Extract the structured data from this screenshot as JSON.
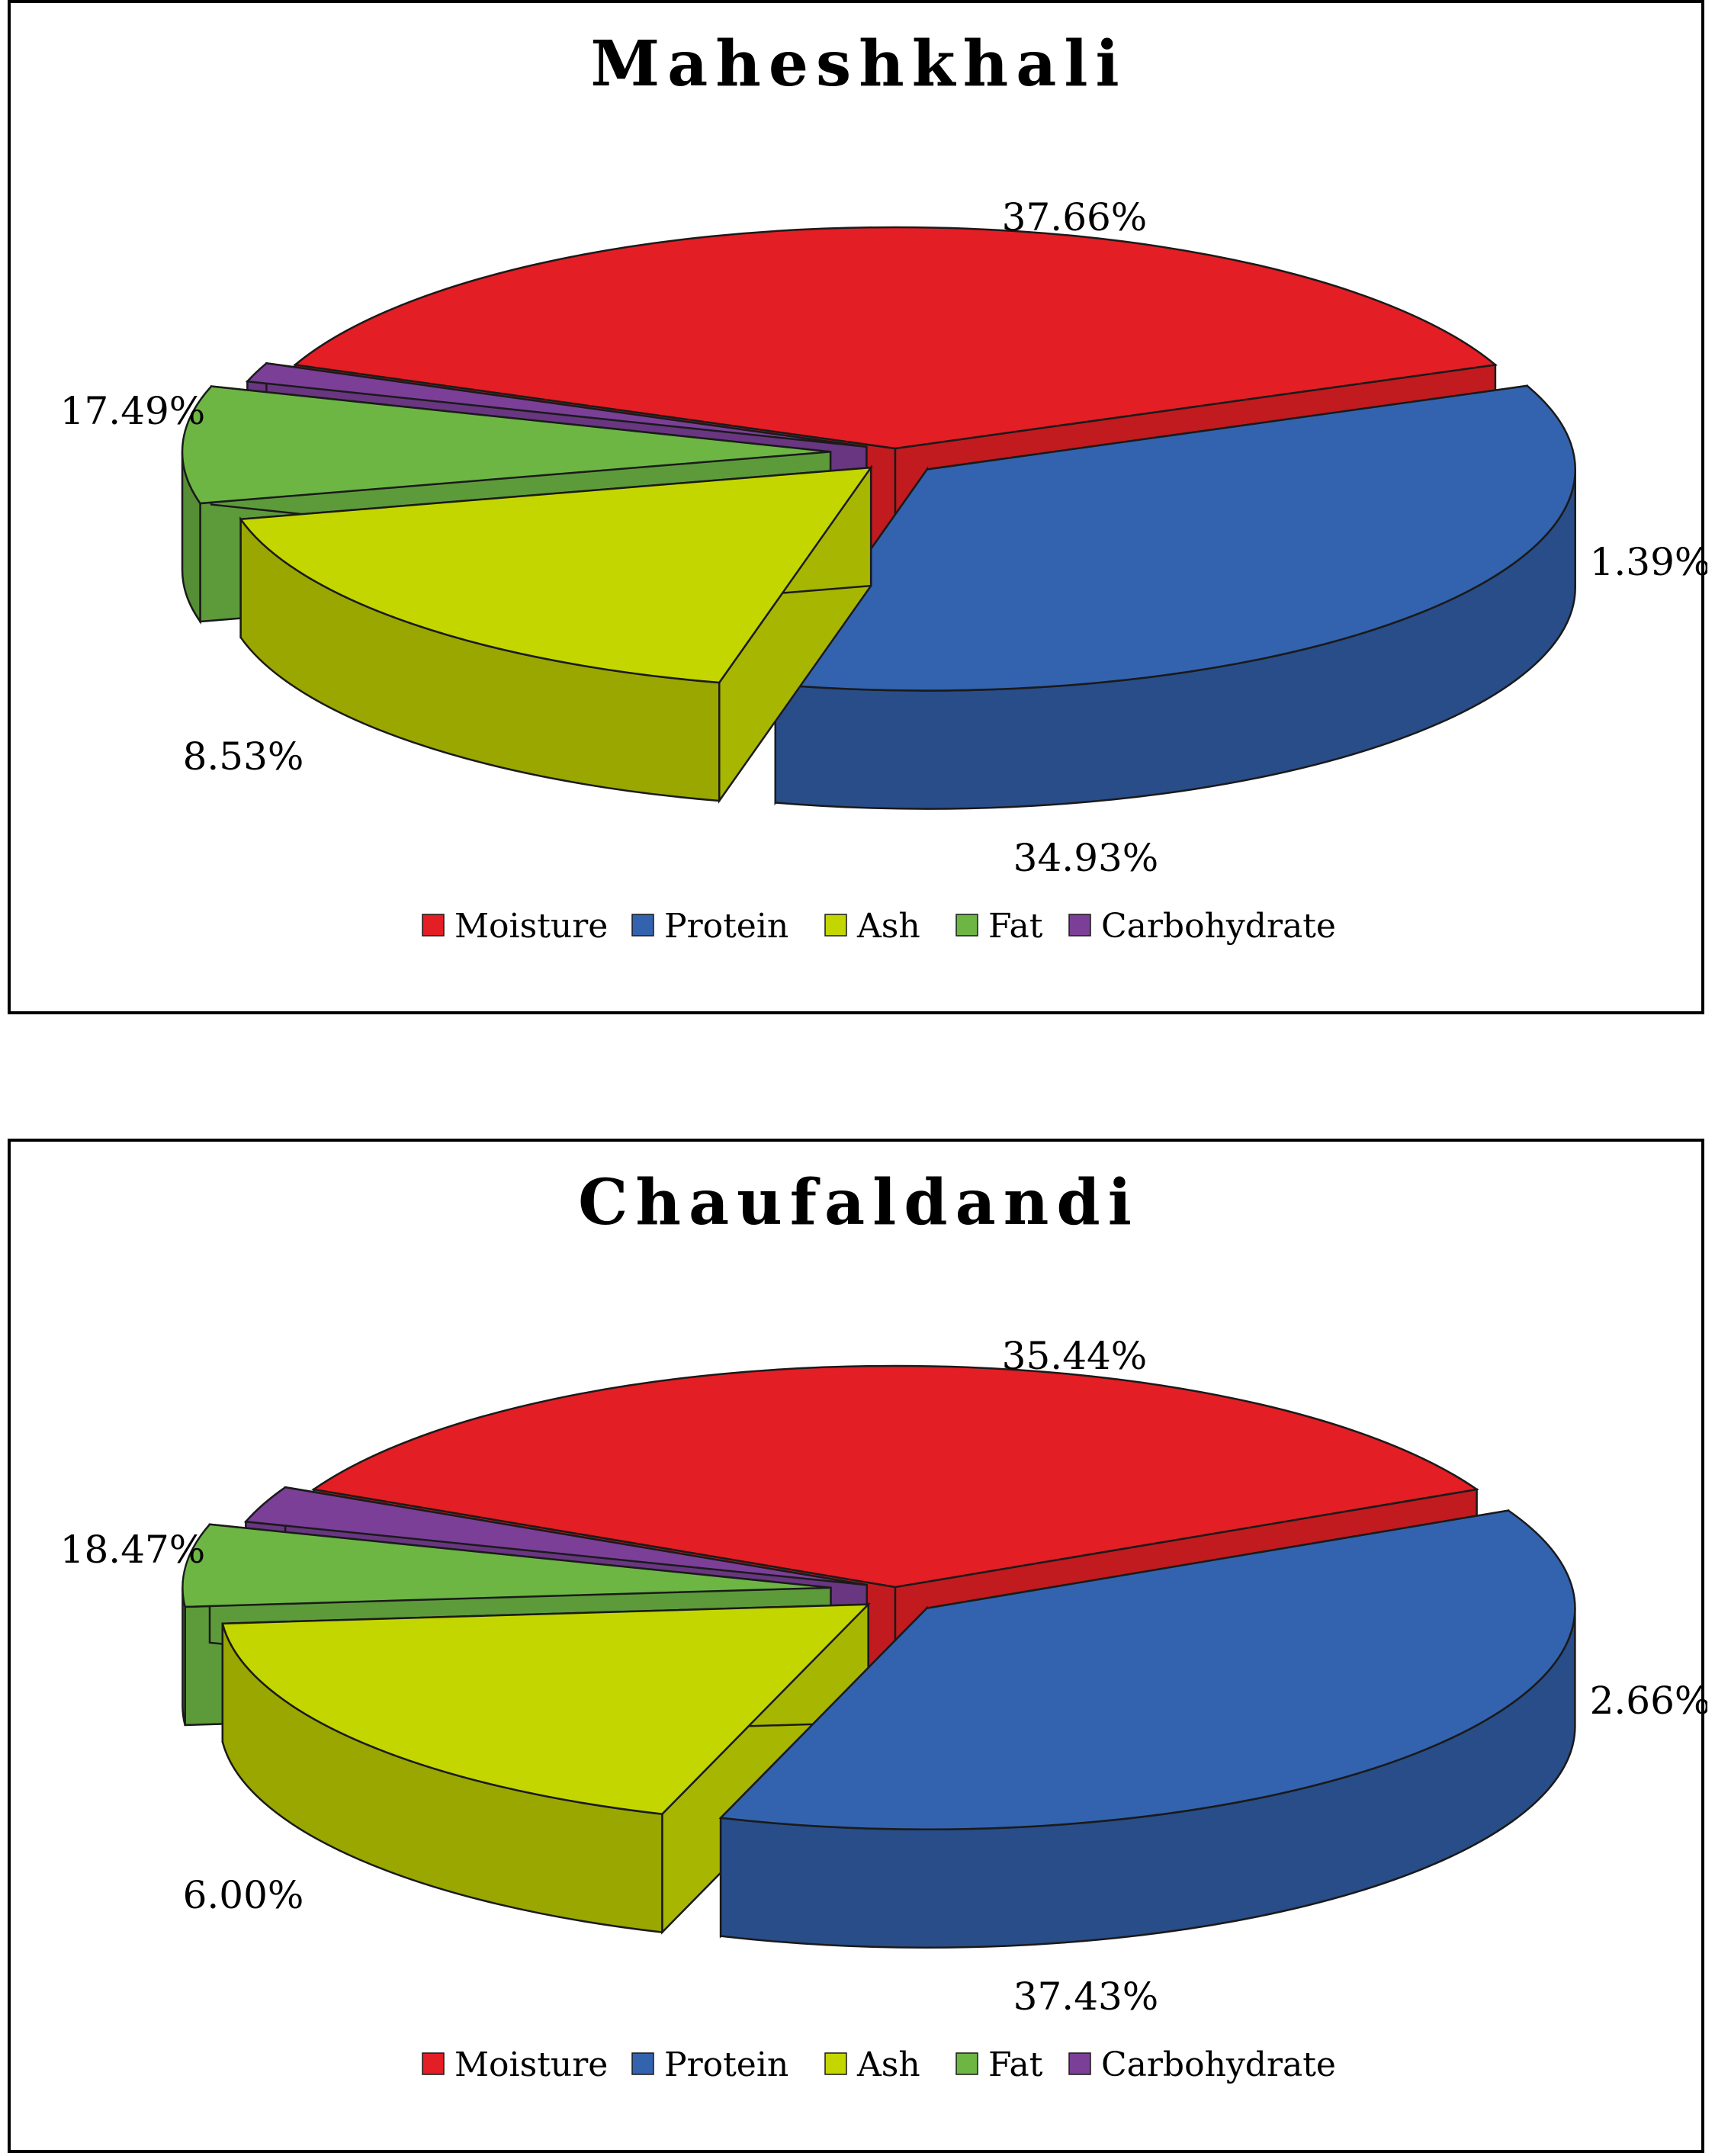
{
  "chart_data": [
    {
      "type": "pie",
      "title": "Maheshkhali",
      "categories": [
        "Moisture",
        "Protein",
        "Ash",
        "Fat",
        "Carbohydrate"
      ],
      "values": [
        37.66,
        34.93,
        17.49,
        8.53,
        1.39
      ],
      "value_labels": [
        "37.66%",
        "34.93%",
        "17.49%",
        "8.53%",
        "1.39%"
      ],
      "legend_position": "bottom",
      "style": "3d-exploded"
    },
    {
      "type": "pie",
      "title": "Chaufaldandi",
      "categories": [
        "Moisture",
        "Protein",
        "Ash",
        "Fat",
        "Carbohydrate"
      ],
      "values": [
        35.44,
        37.43,
        18.47,
        6.0,
        2.66
      ],
      "value_labels": [
        "35.44%",
        "37.43%",
        "18.47%",
        "6.00%",
        "2.66%"
      ],
      "legend_position": "bottom",
      "style": "3d-exploded"
    }
  ],
  "colors": {
    "Moisture": "#e31e24",
    "Protein": "#3363ae",
    "Ash": "#c4d600",
    "Fat": "#6db644",
    "Carbohydrate": "#7b3f98"
  }
}
